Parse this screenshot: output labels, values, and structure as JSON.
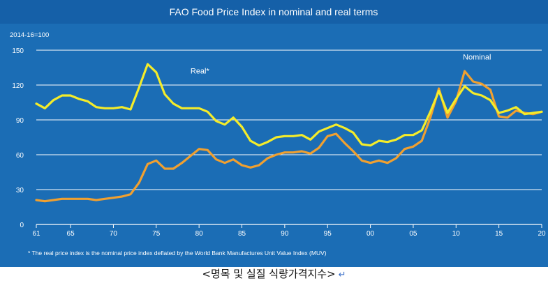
{
  "colors": {
    "background": "#1b6db5",
    "title_bar": "#1560a8",
    "plot_area": "#1a66b0",
    "grid": "#ffffff",
    "real": "#f4ec2a",
    "nominal": "#f0a030",
    "text": "#ffffff"
  },
  "caption": {
    "text": "<명목 및 실질 식량가격지수>",
    "return_symbol": "↵"
  },
  "chart_data": {
    "type": "line",
    "title": "FAO Food Price Index in nominal and real terms",
    "unit_label": "2014-16=100",
    "footnote": "* The real price index is the nominal price index deflated by the World Bank Manufactures Unit Value Index (MUV)",
    "ylim": [
      0,
      150
    ],
    "yticks": [
      0,
      30,
      60,
      90,
      120,
      150
    ],
    "xlim": [
      1961,
      2020
    ],
    "xticks": [
      {
        "year": 1961,
        "label": "61"
      },
      {
        "year": 1965,
        "label": "65"
      },
      {
        "year": 1970,
        "label": "70"
      },
      {
        "year": 1975,
        "label": "75"
      },
      {
        "year": 1980,
        "label": "80"
      },
      {
        "year": 1985,
        "label": "85"
      },
      {
        "year": 1990,
        "label": "90"
      },
      {
        "year": 1995,
        "label": "95"
      },
      {
        "year": 2000,
        "label": "00"
      },
      {
        "year": 2005,
        "label": "05"
      },
      {
        "year": 2010,
        "label": "10"
      },
      {
        "year": 2015,
        "label": "15"
      },
      {
        "year": 2020,
        "label": "20"
      }
    ],
    "grid": true,
    "series": [
      {
        "name": "Real*",
        "label_year": 1979,
        "label_value": 130,
        "points": [
          [
            1961,
            104
          ],
          [
            1962,
            100
          ],
          [
            1963,
            107
          ],
          [
            1964,
            111
          ],
          [
            1965,
            111
          ],
          [
            1966,
            108
          ],
          [
            1967,
            106
          ],
          [
            1968,
            101
          ],
          [
            1969,
            100
          ],
          [
            1970,
            100
          ],
          [
            1971,
            101
          ],
          [
            1972,
            99
          ],
          [
            1973,
            118
          ],
          [
            1974,
            138
          ],
          [
            1975,
            131
          ],
          [
            1976,
            112
          ],
          [
            1977,
            104
          ],
          [
            1978,
            100
          ],
          [
            1979,
            100
          ],
          [
            1980,
            100
          ],
          [
            1981,
            97
          ],
          [
            1982,
            89
          ],
          [
            1983,
            86
          ],
          [
            1984,
            92
          ],
          [
            1985,
            84
          ],
          [
            1986,
            72
          ],
          [
            1987,
            68
          ],
          [
            1988,
            71
          ],
          [
            1989,
            75
          ],
          [
            1990,
            76
          ],
          [
            1991,
            76
          ],
          [
            1992,
            77
          ],
          [
            1993,
            73
          ],
          [
            1994,
            80
          ],
          [
            1995,
            83
          ],
          [
            1996,
            86
          ],
          [
            1997,
            83
          ],
          [
            1998,
            79
          ],
          [
            1999,
            69
          ],
          [
            2000,
            68
          ],
          [
            2001,
            72
          ],
          [
            2002,
            71
          ],
          [
            2003,
            73
          ],
          [
            2004,
            77
          ],
          [
            2005,
            77
          ],
          [
            2006,
            81
          ],
          [
            2007,
            97
          ],
          [
            2008,
            115
          ],
          [
            2009,
            96
          ],
          [
            2010,
            108
          ],
          [
            2011,
            119
          ],
          [
            2012,
            113
          ],
          [
            2013,
            111
          ],
          [
            2014,
            107
          ],
          [
            2015,
            96
          ],
          [
            2016,
            98
          ],
          [
            2017,
            101
          ],
          [
            2018,
            95
          ],
          [
            2019,
            96
          ],
          [
            2020,
            97
          ]
        ]
      },
      {
        "name": "Nominal",
        "label_year": 2010.8,
        "label_value": 142,
        "points": [
          [
            1961,
            21
          ],
          [
            1962,
            20
          ],
          [
            1963,
            21
          ],
          [
            1964,
            22
          ],
          [
            1965,
            22
          ],
          [
            1966,
            22
          ],
          [
            1967,
            22
          ],
          [
            1968,
            21
          ],
          [
            1969,
            22
          ],
          [
            1970,
            23
          ],
          [
            1971,
            24
          ],
          [
            1972,
            26
          ],
          [
            1973,
            36
          ],
          [
            1974,
            52
          ],
          [
            1975,
            55
          ],
          [
            1976,
            48
          ],
          [
            1977,
            48
          ],
          [
            1978,
            53
          ],
          [
            1979,
            59
          ],
          [
            1980,
            65
          ],
          [
            1981,
            64
          ],
          [
            1982,
            56
          ],
          [
            1983,
            53
          ],
          [
            1984,
            56
          ],
          [
            1985,
            51
          ],
          [
            1986,
            49
          ],
          [
            1987,
            51
          ],
          [
            1988,
            57
          ],
          [
            1989,
            60
          ],
          [
            1990,
            62
          ],
          [
            1991,
            62
          ],
          [
            1992,
            63
          ],
          [
            1993,
            61
          ],
          [
            1994,
            66
          ],
          [
            1995,
            76
          ],
          [
            1996,
            78
          ],
          [
            1997,
            70
          ],
          [
            1998,
            63
          ],
          [
            1999,
            55
          ],
          [
            2000,
            53
          ],
          [
            2001,
            55
          ],
          [
            2002,
            53
          ],
          [
            2003,
            57
          ],
          [
            2004,
            65
          ],
          [
            2005,
            67
          ],
          [
            2006,
            72
          ],
          [
            2007,
            92
          ],
          [
            2008,
            117
          ],
          [
            2009,
            92
          ],
          [
            2010,
            106
          ],
          [
            2011,
            132
          ],
          [
            2012,
            123
          ],
          [
            2013,
            121
          ],
          [
            2014,
            116
          ],
          [
            2015,
            93
          ],
          [
            2016,
            92
          ],
          [
            2017,
            98
          ],
          [
            2018,
            96
          ],
          [
            2019,
            95
          ],
          [
            2020,
            97
          ]
        ]
      }
    ]
  }
}
